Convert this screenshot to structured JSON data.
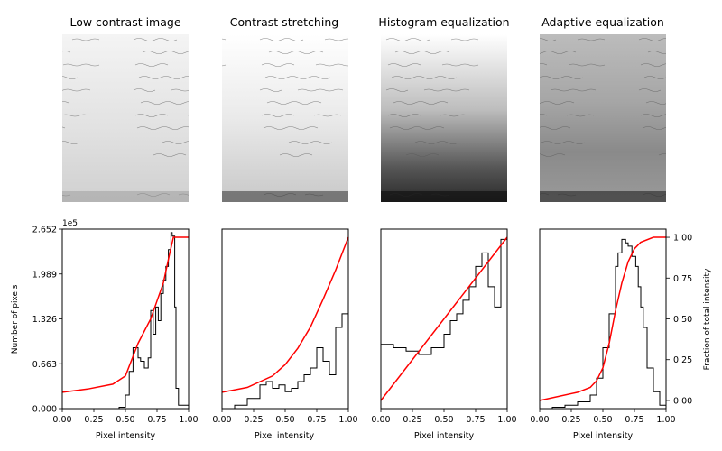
{
  "figure": {
    "titles": [
      "Low contrast image",
      "Contrast stretching",
      "Histogram equalization",
      "Adaptive equalization"
    ],
    "xlabel": "Pixel intensity",
    "ylabel_left": "Number of pixels",
    "ylabel_right": "Fraction of total intensity",
    "offset_label": "1e5",
    "colors": {
      "histogram": "#000000",
      "cdf": "#ff0000"
    }
  },
  "chart_data": {
    "type": "line",
    "xlim": [
      0,
      1
    ],
    "x_ticks": [
      "0.00",
      "0.25",
      "0.50",
      "0.75",
      "1.00"
    ],
    "y_left_ticks": [
      "0.000",
      "0.663",
      "1.326",
      "1.989",
      "2.652"
    ],
    "y_left_tick_values": [
      0,
      0.663,
      1.326,
      1.989,
      2.652
    ],
    "y_left_units": "1e5",
    "ylim_left": [
      0,
      2.652
    ],
    "y_right_ticks": [
      "0.00",
      "0.25",
      "0.50",
      "0.75",
      "1.00"
    ],
    "y_right_tick_values": [
      0,
      0.25,
      0.5,
      0.75,
      1.0
    ],
    "ylim_right": [
      -0.05,
      1.05
    ],
    "panels": [
      {
        "histogram": {
          "x": [
            0,
            0.45,
            0.5,
            0.53,
            0.56,
            0.6,
            0.62,
            0.65,
            0.68,
            0.7,
            0.72,
            0.74,
            0.76,
            0.78,
            0.8,
            0.82,
            0.84,
            0.86,
            0.87,
            0.89,
            0.9,
            0.92,
            1.0
          ],
          "y": [
            0,
            0.02,
            0.2,
            0.55,
            0.9,
            0.75,
            0.7,
            0.6,
            0.75,
            1.45,
            1.1,
            1.5,
            1.3,
            1.7,
            1.9,
            2.1,
            2.35,
            2.6,
            2.55,
            1.5,
            0.3,
            0.05,
            0
          ]
        },
        "cdf": {
          "x": [
            0,
            0.2,
            0.4,
            0.5,
            0.55,
            0.6,
            0.7,
            0.8,
            0.85,
            0.88,
            0.9,
            1.0
          ],
          "y": [
            0.05,
            0.07,
            0.1,
            0.15,
            0.25,
            0.35,
            0.5,
            0.72,
            0.9,
            1.0,
            1.0,
            1.0
          ]
        }
      },
      {
        "histogram": {
          "x": [
            0,
            0.1,
            0.2,
            0.3,
            0.35,
            0.4,
            0.45,
            0.5,
            0.55,
            0.6,
            0.65,
            0.7,
            0.75,
            0.8,
            0.85,
            0.9,
            0.95,
            1.0
          ],
          "y": [
            0,
            0.05,
            0.15,
            0.35,
            0.4,
            0.3,
            0.35,
            0.25,
            0.3,
            0.4,
            0.5,
            0.6,
            0.9,
            0.7,
            0.5,
            1.2,
            1.4,
            0.6
          ]
        },
        "cdf": {
          "x": [
            0,
            0.2,
            0.4,
            0.5,
            0.6,
            0.7,
            0.8,
            0.9,
            1.0
          ],
          "y": [
            0.05,
            0.08,
            0.15,
            0.22,
            0.32,
            0.45,
            0.62,
            0.8,
            1.0
          ]
        }
      },
      {
        "histogram": {
          "x": [
            0,
            0.1,
            0.2,
            0.3,
            0.4,
            0.5,
            0.55,
            0.6,
            0.65,
            0.7,
            0.75,
            0.8,
            0.85,
            0.9,
            0.95,
            1.0
          ],
          "y": [
            0.95,
            0.9,
            0.85,
            0.8,
            0.9,
            1.1,
            1.3,
            1.4,
            1.6,
            1.8,
            2.1,
            2.3,
            1.8,
            1.5,
            2.5,
            1.6
          ]
        },
        "cdf": {
          "x": [
            0,
            1.0
          ],
          "y": [
            0,
            1.0
          ]
        }
      },
      {
        "histogram": {
          "x": [
            0,
            0.1,
            0.2,
            0.3,
            0.4,
            0.45,
            0.5,
            0.55,
            0.6,
            0.62,
            0.65,
            0.68,
            0.7,
            0.73,
            0.76,
            0.78,
            0.8,
            0.82,
            0.85,
            0.9,
            0.95,
            1.0
          ],
          "y": [
            0,
            0.02,
            0.05,
            0.1,
            0.2,
            0.45,
            0.9,
            1.4,
            2.1,
            2.3,
            2.5,
            2.45,
            2.4,
            2.25,
            2.1,
            1.8,
            1.5,
            1.2,
            0.6,
            0.25,
            0.05,
            0
          ]
        },
        "cdf": {
          "x": [
            0,
            0.3,
            0.4,
            0.45,
            0.5,
            0.55,
            0.6,
            0.65,
            0.7,
            0.75,
            0.8,
            0.9,
            1.0
          ],
          "y": [
            0.0,
            0.05,
            0.08,
            0.12,
            0.2,
            0.35,
            0.55,
            0.72,
            0.85,
            0.93,
            0.97,
            1.0,
            1.0
          ]
        }
      }
    ]
  }
}
